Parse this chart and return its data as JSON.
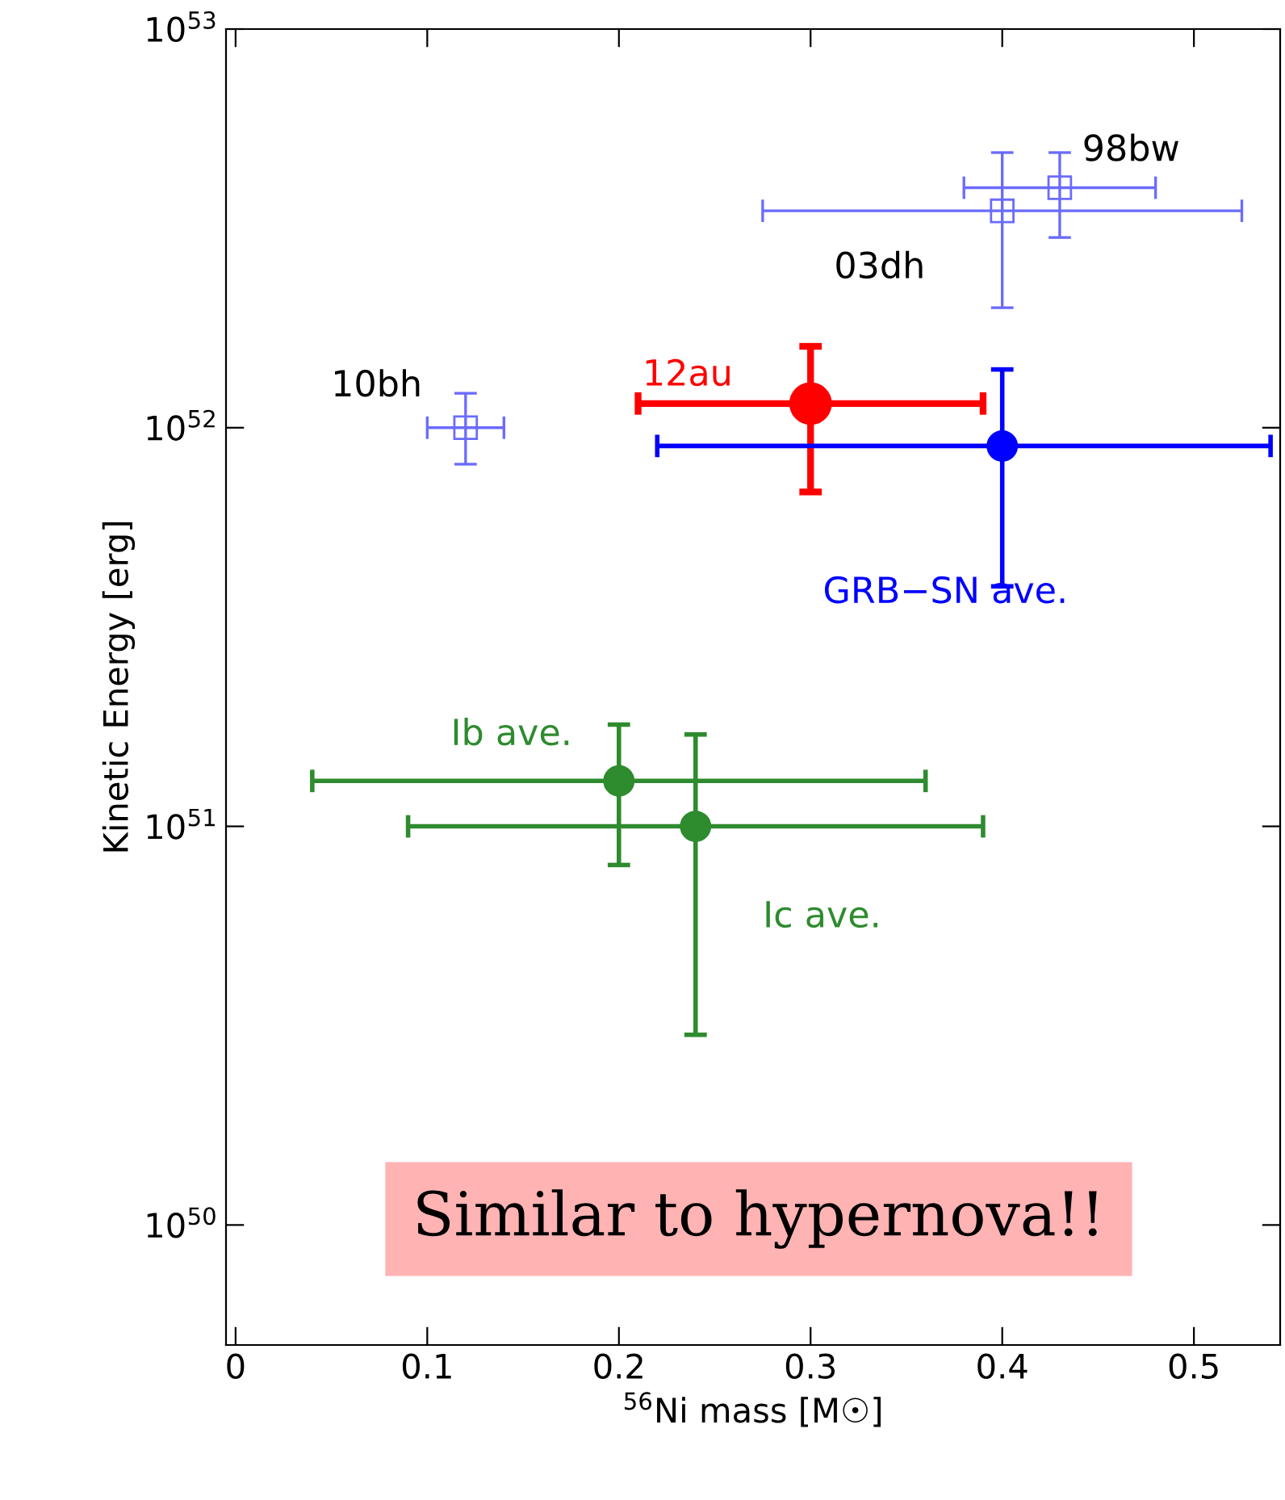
{
  "chart_data": {
    "type": "scatter",
    "xlabel": "$^{56}$Ni mass [M☉]",
    "ylabel": "Kinetic Energy [erg]",
    "log": "y",
    "xlim": [
      -0.005,
      0.545
    ],
    "ylim": [
      5e+49,
      1e+53
    ],
    "xticks": [
      0,
      0.1,
      0.2,
      0.3,
      0.4,
      0.5
    ],
    "yticks": [
      {
        "value": 1e+50,
        "label": "10$^{50}$"
      },
      {
        "value": 1e+51,
        "label": "10$^{51}$"
      },
      {
        "value": 1e+52,
        "label": "10$^{52}$"
      },
      {
        "value": 1e+53,
        "label": "10$^{53}$"
      }
    ],
    "grid": false,
    "series": [
      {
        "name": "10bh",
        "color": "#6b6bff",
        "marker": "square",
        "x": [
          0.12
        ],
        "values": [
          1e+52
        ],
        "errors": [
          [
            8.1e+51,
            1.22e+52
          ]
        ],
        "xerrors": [
          [
            0.1,
            0.14
          ]
        ]
      },
      {
        "name": "98bw",
        "color": "#6b6bff",
        "marker": "square",
        "x": [
          0.43
        ],
        "values": [
          4e+52
        ],
        "errors": [
          [
            3e+52,
            4.9e+52
          ]
        ],
        "xerrors": [
          [
            0.38,
            0.48
          ]
        ]
      },
      {
        "name": "03dh",
        "color": "#6b6bff",
        "marker": "square",
        "x": [
          0.4
        ],
        "values": [
          3.5e+52
        ],
        "errors": [
          [
            2e+52,
            4.9e+52
          ]
        ],
        "xerrors": [
          [
            0.275,
            0.525
          ]
        ]
      },
      {
        "name": "12au",
        "color": "#ff0000",
        "marker": "circle",
        "x": [
          0.3
        ],
        "values": [
          1.15e+52
        ],
        "errors": [
          [
            6.9e+51,
            1.6e+52
          ]
        ],
        "xerrors": [
          [
            0.21,
            0.39
          ]
        ]
      },
      {
        "name": "GRB−SN ave.",
        "color": "#0000ff",
        "marker": "circle",
        "x": [
          0.4
        ],
        "values": [
          9e+51
        ],
        "errors": [
          [
            4e+51,
            1.4e+52
          ]
        ],
        "xerrors": [
          [
            0.22,
            0.54
          ]
        ]
      },
      {
        "name": "Ib ave.",
        "color": "#2e8b2e",
        "marker": "circle",
        "x": [
          0.2
        ],
        "values": [
          1.3e+51
        ],
        "errors": [
          [
            8e+50,
            1.8e+51
          ]
        ],
        "xerrors": [
          [
            0.04,
            0.36
          ]
        ]
      },
      {
        "name": "Ic ave.",
        "color": "#2e8b2e",
        "marker": "circle",
        "x": [
          0.24
        ],
        "values": [
          1e+51
        ],
        "errors": [
          [
            3e+50,
            1.7e+51
          ]
        ],
        "xerrors": [
          [
            0.09,
            0.39
          ]
        ]
      }
    ],
    "annotations": [
      "Similar to hypernova!!"
    ]
  }
}
